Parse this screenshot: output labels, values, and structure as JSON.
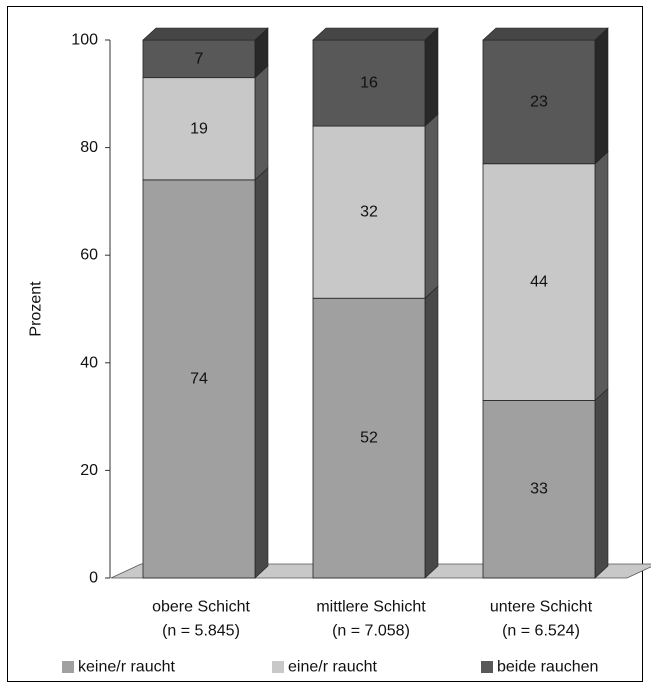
{
  "chart_data": {
    "type": "bar",
    "stacked": true,
    "three_d": true,
    "ylabel": "Prozent",
    "ylim": [
      0,
      100
    ],
    "yticks": [
      0,
      20,
      40,
      60,
      80,
      100
    ],
    "grid": false,
    "legend_position": "bottom",
    "categories": [
      [
        "obere  Schicht",
        "(n = 5.845)"
      ],
      [
        "mittlere Schicht",
        "(n = 7.058)"
      ],
      [
        "untere Schicht",
        "(n = 6.524)"
      ]
    ],
    "series": [
      {
        "name": "keine/r raucht",
        "values": [
          74,
          52,
          33
        ],
        "color": "#a0a0a0",
        "label_color": "#111111"
      },
      {
        "name": "eine/r raucht",
        "values": [
          19,
          32,
          44
        ],
        "color": "#c8c8c8",
        "label_color": "#111111"
      },
      {
        "name": "beide rauchen",
        "values": [
          7,
          16,
          23
        ],
        "color": "#585858",
        "label_color": "#ffffff"
      }
    ]
  }
}
